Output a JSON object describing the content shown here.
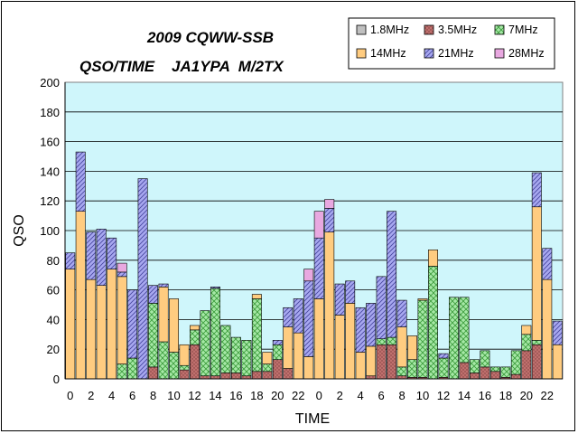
{
  "chart_data": {
    "type": "bar",
    "stacked": true,
    "title_lines": [
      "2009 CQWW-SSB",
      "QSO/TIME    JA1YPA  M/2TX"
    ],
    "xlabel": "TIME",
    "ylabel": "QSO",
    "ylim": [
      0,
      200
    ],
    "yticks": [
      0,
      20,
      40,
      60,
      80,
      100,
      120,
      140,
      160,
      180,
      200
    ],
    "grid": true,
    "legend_position": "top-right",
    "categories": [
      0,
      1,
      2,
      3,
      4,
      5,
      6,
      7,
      8,
      9,
      10,
      11,
      12,
      13,
      14,
      15,
      16,
      17,
      18,
      19,
      20,
      21,
      22,
      23,
      0,
      1,
      2,
      3,
      4,
      5,
      6,
      7,
      8,
      9,
      10,
      11,
      12,
      13,
      14,
      15,
      16,
      17,
      18,
      19,
      20,
      21,
      22,
      23
    ],
    "xtick_labels": [
      "0",
      "",
      "2",
      "",
      "4",
      "",
      "6",
      "",
      "8",
      "",
      "10",
      "",
      "12",
      "",
      "14",
      "",
      "16",
      "",
      "18",
      "",
      "20",
      "",
      "22",
      "",
      "0",
      "",
      "2",
      "",
      "4",
      "",
      "6",
      "",
      "8",
      "",
      "10",
      "",
      "12",
      "",
      "14",
      "",
      "16",
      "",
      "18",
      "",
      "20",
      "",
      "22",
      ""
    ],
    "series": [
      {
        "name": "1.8MHz",
        "color": "#c0c0c0",
        "pattern": "none",
        "values": [
          0,
          0,
          0,
          0,
          0,
          0,
          0,
          0,
          0,
          0,
          0,
          0,
          0,
          0,
          0,
          0,
          0,
          0,
          0,
          0,
          0,
          0,
          0,
          0,
          0,
          0,
          0,
          0,
          0,
          0,
          0,
          0,
          0,
          0,
          0,
          0,
          0,
          0,
          0,
          0,
          0,
          0,
          0,
          0,
          0,
          0,
          0,
          0
        ]
      },
      {
        "name": "3.5MHz",
        "color": "#c0706e",
        "pattern": "dots",
        "values": [
          0,
          0,
          0,
          0,
          0,
          0,
          0,
          0,
          8,
          0,
          0,
          6,
          23,
          2,
          2,
          4,
          4,
          2,
          5,
          5,
          13,
          7,
          0,
          0,
          0,
          0,
          0,
          0,
          0,
          2,
          23,
          23,
          2,
          1,
          1,
          0,
          1,
          0,
          11,
          4,
          8,
          5,
          1,
          3,
          19,
          23,
          0,
          0
        ]
      },
      {
        "name": "7MHz",
        "color": "#a6e8a6",
        "pattern": "cross",
        "values": [
          0,
          0,
          0,
          0,
          0,
          10,
          14,
          0,
          43,
          25,
          18,
          3,
          10,
          44,
          59,
          32,
          24,
          24,
          49,
          5,
          10,
          0,
          0,
          0,
          0,
          0,
          0,
          0,
          0,
          0,
          4,
          5,
          6,
          12,
          52,
          76,
          13,
          55,
          44,
          9,
          11,
          3,
          7,
          16,
          11,
          3,
          0,
          0
        ]
      },
      {
        "name": "14MHz",
        "color": "#ffcc80",
        "pattern": "none",
        "values": [
          74,
          113,
          67,
          63,
          74,
          59,
          0,
          0,
          0,
          37,
          36,
          14,
          3,
          0,
          0,
          0,
          0,
          0,
          3,
          8,
          0,
          28,
          31,
          15,
          54,
          99,
          43,
          51,
          18,
          20,
          0,
          0,
          27,
          16,
          1,
          11,
          0,
          0,
          0,
          0,
          0,
          0,
          0,
          0,
          6,
          90,
          67,
          23
        ]
      },
      {
        "name": "21MHz",
        "color": "#a8a8f0",
        "pattern": "diag",
        "values": [
          11,
          40,
          32,
          38,
          21,
          3,
          46,
          135,
          12,
          2,
          0,
          0,
          0,
          0,
          1,
          0,
          0,
          0,
          0,
          0,
          3,
          13,
          23,
          51,
          41,
          16,
          21,
          15,
          30,
          29,
          42,
          85,
          18,
          0,
          0,
          0,
          3,
          0,
          0,
          0,
          0,
          0,
          0,
          0,
          0,
          23,
          21,
          16
        ]
      },
      {
        "name": "28MHz",
        "color": "#e8a8e0",
        "pattern": "none",
        "values": [
          0,
          0,
          0,
          0,
          0,
          6,
          0,
          0,
          0,
          0,
          0,
          0,
          0,
          0,
          0,
          0,
          0,
          0,
          0,
          0,
          0,
          0,
          0,
          8,
          18,
          6,
          0,
          0,
          0,
          0,
          0,
          0,
          0,
          0,
          0,
          0,
          0,
          0,
          0,
          0,
          0,
          0,
          0,
          0,
          0,
          0,
          0,
          0
        ]
      }
    ]
  }
}
